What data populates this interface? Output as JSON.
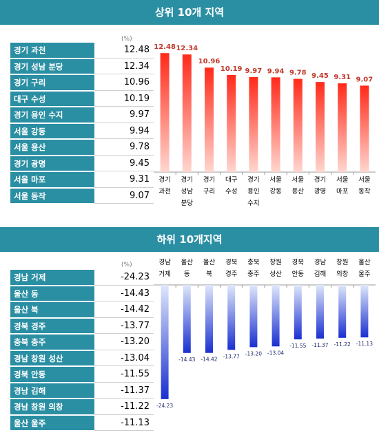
{
  "top": {
    "title": "상위 10개 지역",
    "unit": "(%)",
    "rows": [
      {
        "label": "경기 과천",
        "value": "12.48"
      },
      {
        "label": "경기 성남 분당",
        "value": "12.34"
      },
      {
        "label": "경기 구리",
        "value": "10.96"
      },
      {
        "label": "대구 수성",
        "value": "10.19"
      },
      {
        "label": "경기 용인 수지",
        "value": "9.97"
      },
      {
        "label": "서울 강동",
        "value": "9.94"
      },
      {
        "label": "서울 용산",
        "value": "9.78"
      },
      {
        "label": "경기 광명",
        "value": "9.45"
      },
      {
        "label": "서울 마포",
        "value": "9.31"
      },
      {
        "label": "서울 동작",
        "value": "9.07"
      }
    ]
  },
  "bottom": {
    "title": "하위 10개지역",
    "unit": "(%)",
    "rows": [
      {
        "label": "경남 거제",
        "value": "-24.23"
      },
      {
        "label": "울산 동",
        "value": "-14.43"
      },
      {
        "label": "울산 북",
        "value": "-14.42"
      },
      {
        "label": "경북 경주",
        "value": "-13.77"
      },
      {
        "label": "충북 충주",
        "value": "-13.20"
      },
      {
        "label": "경남 창원 성산",
        "value": "-13.04"
      },
      {
        "label": "경북 안동",
        "value": "-11.55"
      },
      {
        "label": "경남 김해",
        "value": "-11.37"
      },
      {
        "label": "경남 창원 의창",
        "value": "-11.22"
      },
      {
        "label": "울산 울주",
        "value": "-11.13"
      }
    ]
  },
  "chart_data": [
    {
      "type": "bar",
      "title": "상위 10개 지역",
      "categories": [
        [
          "경기",
          "과천"
        ],
        [
          "경기",
          "성남",
          "분당"
        ],
        [
          "경기",
          "구리"
        ],
        [
          "대구",
          "수성"
        ],
        [
          "경기",
          "용인",
          "수지"
        ],
        [
          "서울",
          "강동"
        ],
        [
          "서울",
          "용산"
        ],
        [
          "경기",
          "광명"
        ],
        [
          "서울",
          "마포"
        ],
        [
          "서울",
          "동작"
        ]
      ],
      "values": [
        12.48,
        12.34,
        10.96,
        10.19,
        9.97,
        9.94,
        9.78,
        9.45,
        9.31,
        9.07
      ],
      "data_labels": [
        "12.48",
        "12.34",
        "10.96",
        "10.19",
        "9.97",
        "9.94",
        "9.78",
        "9.45",
        "9.31",
        "9.07"
      ],
      "ylim": [
        0,
        13
      ],
      "bar_color_top": "#ff2a1a",
      "bar_color_bottom": "#ffd6cf",
      "label_color": "#c0392b"
    },
    {
      "type": "bar",
      "title": "하위 10개지역",
      "categories": [
        [
          "경남",
          "거제"
        ],
        [
          "울산",
          "동"
        ],
        [
          "울산",
          "북"
        ],
        [
          "경북",
          "경주"
        ],
        [
          "충북",
          "충주"
        ],
        [
          "창원",
          "성산"
        ],
        [
          "경북",
          "안동"
        ],
        [
          "경남",
          "김해"
        ],
        [
          "창원",
          "의창"
        ],
        [
          "울산",
          "울주"
        ]
      ],
      "values": [
        -24.23,
        -14.43,
        -14.42,
        -13.77,
        -13.2,
        -13.04,
        -11.55,
        -11.37,
        -11.22,
        -11.13
      ],
      "data_labels": [
        "-24.23",
        "-14.43",
        "-14.42",
        "-13.77",
        "-13.20",
        "-13.04",
        "-11.55",
        "-11.37",
        "-11.22",
        "-11.13"
      ],
      "ylim": [
        -26,
        0
      ],
      "bar_color_top": "#dfe7fb",
      "bar_color_bottom": "#1a2fd0",
      "label_color": "#1f2a6b"
    }
  ]
}
